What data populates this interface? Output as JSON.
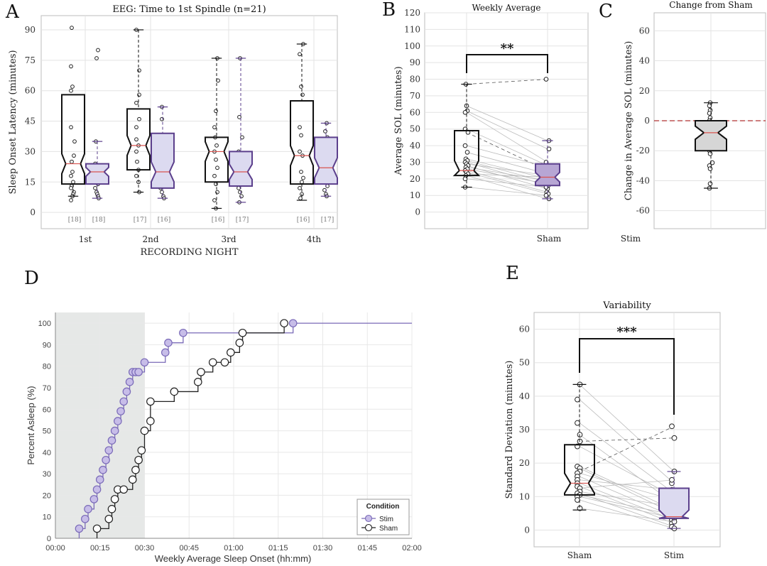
{
  "panels": {
    "a": "A",
    "b": "B",
    "c": "C",
    "d": "D",
    "e": "E"
  },
  "chart_data": [
    {
      "id": "A",
      "type": "box",
      "title": "EEG: Time to 1st Spindle (n=21)",
      "xlabel": "RECORDING NIGHT",
      "ylabel": "Sleep Onset Latency (minutes)",
      "ylim": [
        -8,
        97
      ],
      "yticks": [
        0,
        15,
        30,
        45,
        60,
        75,
        90
      ],
      "categories": [
        "1st",
        "2nd",
        "3rd",
        "4th"
      ],
      "groups": [
        {
          "night": "1st",
          "sham": {
            "n": "[18]",
            "q1": 14,
            "median": 24,
            "q3": 58,
            "whisker_low": 8,
            "whisker_high": 58,
            "points": [
              91,
              72,
              62,
              60,
              42,
              35,
              28,
              25,
              20,
              18,
              15,
              13,
              12,
              10,
              9,
              8,
              6
            ]
          },
          "stim": {
            "n": "[18]",
            "q1": 14,
            "median": 20,
            "q3": 24,
            "whisker_low": 7,
            "whisker_high": 35,
            "points": [
              80,
              76,
              35,
              24,
              22,
              20,
              18,
              16,
              15,
              14,
              12,
              10,
              9,
              8,
              7
            ]
          }
        },
        {
          "night": "2nd",
          "sham": {
            "n": "[17]",
            "q1": 21,
            "median": 33,
            "q3": 51,
            "whisker_low": 10,
            "whisker_high": 90,
            "points": [
              90,
              70,
              58,
              54,
              46,
              42,
              36,
              33,
              30,
              25,
              21,
              18,
              15,
              10
            ]
          },
          "stim": {
            "n": "[16]",
            "q1": 12,
            "median": 20,
            "q3": 39,
            "whisker_low": 7,
            "whisker_high": 52,
            "points": [
              52,
              46,
              38,
              32,
              30,
              25,
              22,
              20,
              17,
              14,
              12,
              10,
              8,
              7
            ]
          }
        },
        {
          "night": "3rd",
          "sham": {
            "n": "[16]",
            "q1": 15,
            "median": 30,
            "q3": 37,
            "whisker_low": 2,
            "whisker_high": 76,
            "points": [
              76,
              65,
              50,
              42,
              37,
              33,
              30,
              26,
              22,
              18,
              14,
              10,
              6,
              2
            ]
          },
          "stim": {
            "n": "[17]",
            "q1": 13,
            "median": 20,
            "q3": 30,
            "whisker_low": 5,
            "whisker_high": 76,
            "points": [
              76,
              47,
              37,
              30,
              27,
              24,
              21,
              18,
              15,
              12,
              10,
              8,
              5
            ]
          }
        },
        {
          "night": "4th",
          "sham": {
            "n": "[16]",
            "q1": 14,
            "median": 28,
            "q3": 55,
            "whisker_low": 6,
            "whisker_high": 83,
            "points": [
              83,
              78,
              62,
              58,
              42,
              38,
              30,
              28,
              20,
              17,
              15,
              12,
              9,
              7
            ]
          },
          "stim": {
            "n": "[17]",
            "q1": 14,
            "median": 22,
            "q3": 37,
            "whisker_low": 8,
            "whisker_high": 44,
            "points": [
              44,
              40,
              37,
              33,
              30,
              26,
              22,
              19,
              17,
              15,
              13,
              11,
              9,
              8
            ]
          }
        }
      ]
    },
    {
      "id": "B",
      "type": "box-paired",
      "title": "Weekly Average",
      "ylabel": "Average SOL (minutes)",
      "ylim": [
        -10,
        120
      ],
      "yticks": [
        0,
        10,
        20,
        30,
        40,
        50,
        60,
        70,
        80,
        90,
        100,
        110,
        120
      ],
      "categories": [
        "",
        "Sham"
      ],
      "significance": "**",
      "boxes": [
        {
          "q1": 22,
          "median": 25,
          "q3": 49,
          "whisker_low": 15,
          "whisker_high": 77
        },
        {
          "q1": 16,
          "median": 21,
          "q3": 29,
          "whisker_low": 8,
          "whisker_high": 43
        }
      ],
      "pairs": [
        [
          77,
          80
        ],
        [
          64,
          43
        ],
        [
          61,
          38
        ],
        [
          60,
          30
        ],
        [
          50,
          28
        ],
        [
          48,
          25
        ],
        [
          40,
          27
        ],
        [
          36,
          23
        ],
        [
          32,
          20
        ],
        [
          31,
          18
        ],
        [
          30,
          16
        ],
        [
          29,
          22
        ],
        [
          28,
          14
        ],
        [
          27,
          19
        ],
        [
          26,
          17
        ],
        [
          25,
          12
        ],
        [
          24,
          11
        ],
        [
          23,
          21
        ],
        [
          22,
          8
        ],
        [
          20,
          15
        ],
        [
          15,
          10
        ]
      ],
      "dashed_pairs": [
        0,
        5
      ]
    },
    {
      "id": "C",
      "type": "box",
      "title": "Change from Sham",
      "ylabel": "Change in Average SOL (minutes)",
      "xlabel_outside": "Stim",
      "ylim": [
        -72,
        72
      ],
      "yticks": [
        -60,
        -40,
        -20,
        0,
        20,
        40,
        60
      ],
      "reference_line": 0,
      "box": {
        "q1": -20,
        "median": -8,
        "q3": 0,
        "whisker_low": -45,
        "whisker_high": 12
      },
      "points": [
        12,
        10,
        7,
        5,
        2,
        0,
        -2,
        -4,
        -6,
        -8,
        -10,
        -12,
        -14,
        -16,
        -20,
        -22,
        -28,
        -30,
        -32,
        -42,
        -45
      ]
    },
    {
      "id": "D",
      "type": "step",
      "ylabel": "Percent Asleep (%)",
      "xlabel": "Weekly Average Sleep Onset (hh:mm)",
      "xlim": [
        0,
        120
      ],
      "ylim": [
        0,
        105
      ],
      "xticks": [
        0,
        15,
        30,
        45,
        60,
        75,
        90,
        105,
        120
      ],
      "xticklabels": [
        "00:00",
        "00:15",
        "00:30",
        "00:45",
        "01:00",
        "01:15",
        "01:30",
        "01:45",
        "02:00"
      ],
      "yticks": [
        0,
        10,
        20,
        30,
        40,
        50,
        60,
        70,
        80,
        90,
        100
      ],
      "shaded_region": [
        0,
        30
      ],
      "legend": {
        "title": "Condition",
        "position": "bottom-right"
      },
      "series": [
        {
          "name": "Stim",
          "color": "#7a6ab8",
          "x": [
            8,
            10,
            11,
            13,
            14,
            15,
            16,
            17,
            18,
            19,
            20,
            21,
            22,
            23,
            24,
            25,
            26,
            27,
            28,
            30,
            37,
            38,
            43,
            80
          ],
          "y": [
            4.5,
            9,
            13.6,
            18.2,
            22.7,
            27.3,
            31.8,
            36.4,
            40.9,
            45.5,
            50,
            54.5,
            59.1,
            63.6,
            68.2,
            72.7,
            77.3,
            77.3,
            77.3,
            81.8,
            86.4,
            90.9,
            95.5,
            100
          ]
        },
        {
          "name": "Sham",
          "color": "#222222",
          "x": [
            14,
            18,
            19,
            20,
            21,
            23,
            26,
            27,
            28,
            29,
            30,
            32,
            32,
            40,
            48,
            49,
            53,
            57,
            59,
            62,
            63,
            77
          ],
          "y": [
            4.5,
            9,
            13.6,
            18.2,
            22.7,
            22.7,
            27.3,
            31.8,
            36.4,
            40.9,
            50,
            54.5,
            63.6,
            68.2,
            72.7,
            77.3,
            81.8,
            81.8,
            86.4,
            90.9,
            95.5,
            100
          ]
        }
      ]
    },
    {
      "id": "E",
      "type": "box-paired",
      "title": "Variability",
      "ylabel": "Standard Deviation (minutes)",
      "ylim": [
        -5,
        65
      ],
      "yticks": [
        0,
        10,
        20,
        30,
        40,
        50,
        60
      ],
      "categories": [
        "Sham",
        "Stim"
      ],
      "significance": "***",
      "boxes": [
        {
          "q1": 10.5,
          "median": 14,
          "q3": 25.5,
          "whisker_low": 6,
          "whisker_high": 43.5
        },
        {
          "q1": 3.5,
          "median": 4,
          "q3": 12.5,
          "whisker_low": 0.5,
          "whisker_high": 17.5
        }
      ],
      "pairs": [
        [
          43.5,
          17.5
        ],
        [
          39,
          14
        ],
        [
          32,
          11
        ],
        [
          28.5,
          8
        ],
        [
          26.5,
          27.5
        ],
        [
          25,
          10
        ],
        [
          19,
          6
        ],
        [
          18.5,
          5
        ],
        [
          17.5,
          31
        ],
        [
          17,
          9
        ],
        [
          16,
          4
        ],
        [
          15,
          12
        ],
        [
          14,
          3
        ],
        [
          13,
          2
        ],
        [
          12.5,
          15
        ],
        [
          11.5,
          7
        ],
        [
          11,
          1
        ],
        [
          10.5,
          4.5
        ],
        [
          10,
          3.5
        ],
        [
          9,
          0.5
        ],
        [
          6.5,
          2.5
        ]
      ],
      "dashed_pairs": [
        4,
        8
      ]
    }
  ]
}
